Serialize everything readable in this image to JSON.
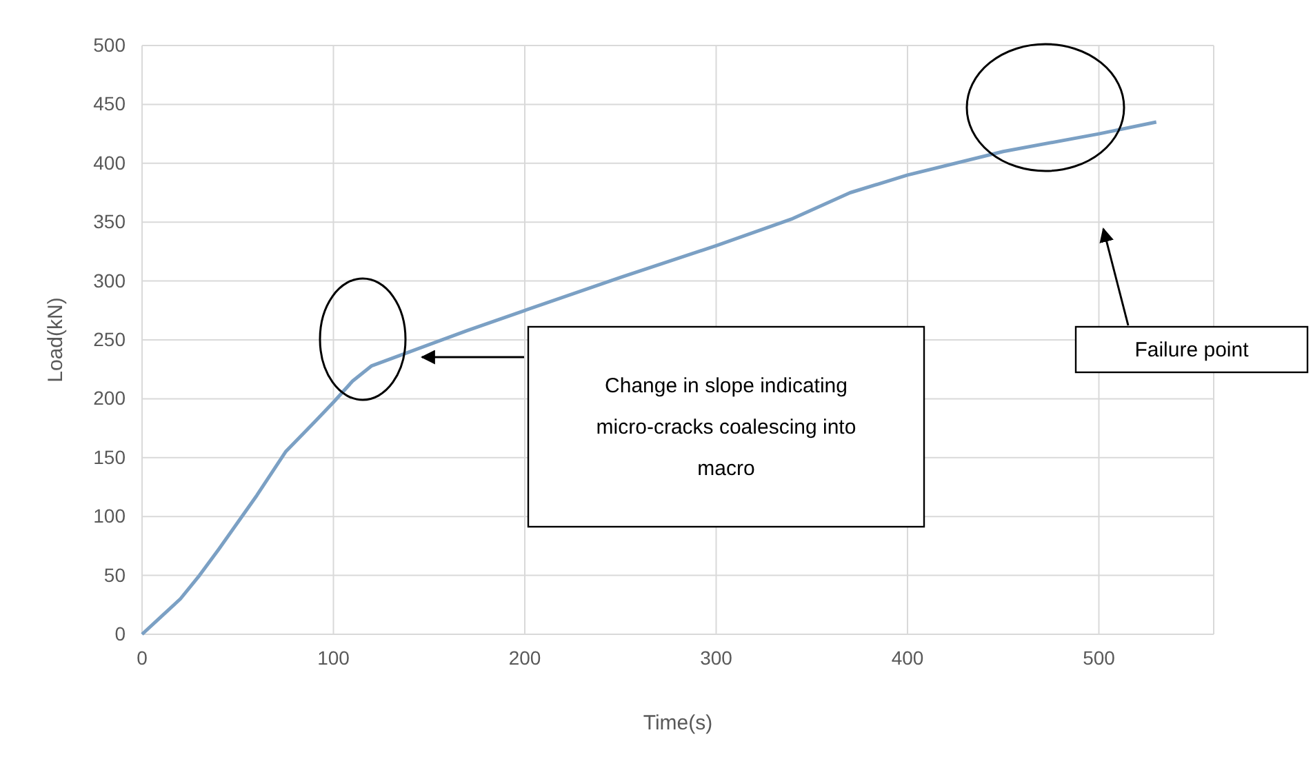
{
  "chart_data": {
    "type": "line",
    "xlabel": "Time(s)",
    "ylabel": "Load(kN)",
    "x": [
      0,
      10,
      20,
      30,
      40,
      50,
      60,
      75,
      90,
      100,
      110,
      120,
      140,
      170,
      200,
      250,
      300,
      340,
      370,
      400,
      450,
      500,
      530
    ],
    "series": [
      {
        "color": "#7ba0c4",
        "values": [
          0,
          15,
          30,
          50,
          72,
          95,
          118,
          155,
          180,
          197,
          215,
          228,
          240,
          258,
          275,
          303,
          330,
          353,
          375,
          390,
          410,
          425,
          435
        ]
      }
    ],
    "xlim": [
      0,
      560
    ],
    "xticks": [
      0,
      100,
      200,
      300,
      400,
      500
    ],
    "ylim": [
      0,
      500
    ],
    "yticks": [
      0,
      50,
      100,
      150,
      200,
      250,
      300,
      350,
      400,
      450,
      500
    ],
    "grid": true,
    "marker": "none",
    "line_style": "solid",
    "annotations": [
      "Change in slope indicating micro-cracks coalescing into macro",
      "Failure point"
    ]
  }
}
